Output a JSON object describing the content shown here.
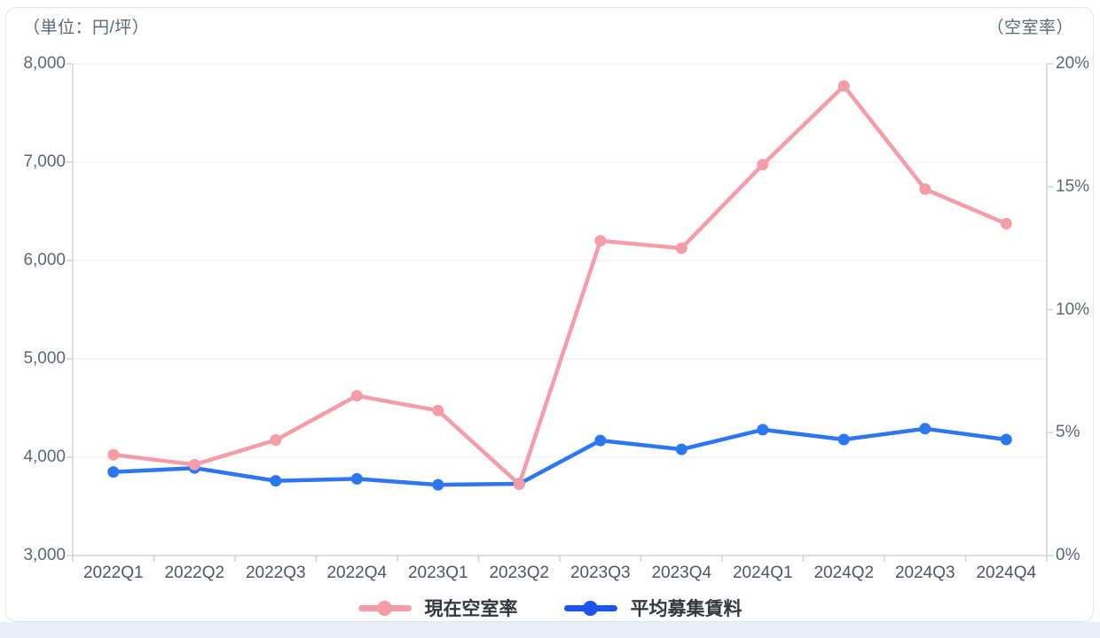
{
  "page": {
    "background": "#FFFFFF",
    "band_color": "#E9EFF6",
    "card_background": "#FFFFFF",
    "card_border": "#DEE5ED"
  },
  "chart_data": {
    "type": "line",
    "title_left": "（単位：円/坪）",
    "title_right": "（空室率）",
    "categories": [
      "2022Q1",
      "2022Q2",
      "2022Q3",
      "2022Q4",
      "2023Q1",
      "2023Q2",
      "2023Q3",
      "2023Q4",
      "2024Q1",
      "2024Q2",
      "2024Q3",
      "2024Q4"
    ],
    "series": [
      {
        "name": "現在空室率",
        "axis": "right",
        "unit": "%",
        "color": "#F59CA9",
        "values": [
          4.1,
          3.7,
          4.7,
          6.5,
          5.9,
          2.9,
          12.8,
          12.5,
          15.9,
          19.1,
          14.9,
          13.5
        ]
      },
      {
        "name": "平均募集賃料",
        "axis": "left",
        "unit": "円/坪",
        "color": "#2D76F1",
        "legend_color": "#1D53EE",
        "values": [
          3850,
          3890,
          3760,
          3780,
          3720,
          3730,
          4170,
          4080,
          4280,
          4180,
          4290,
          4180
        ]
      }
    ],
    "left_axis": {
      "min": 3000,
      "max": 8000,
      "tick_values": [
        8000,
        7000,
        6000,
        5000,
        4000,
        3000
      ],
      "tick_labels": [
        "8,000",
        "7,000",
        "6,000",
        "5,000",
        "4,000",
        "3,000"
      ]
    },
    "right_axis": {
      "min": 0,
      "max": 20,
      "tick_values": [
        20,
        15,
        10,
        5,
        0
      ],
      "tick_labels": [
        "20%",
        "15%",
        "10%",
        "5%",
        "0%"
      ]
    },
    "grid": {
      "grid_color": "#EDEEF0",
      "axis_color": "#CDD2D8",
      "y_label_color": "#5C6772",
      "x_label_color": "#4E575F",
      "legend_text_color": "#33383E"
    },
    "legend_position": "bottom",
    "grid_lines": "horizontal-only"
  }
}
